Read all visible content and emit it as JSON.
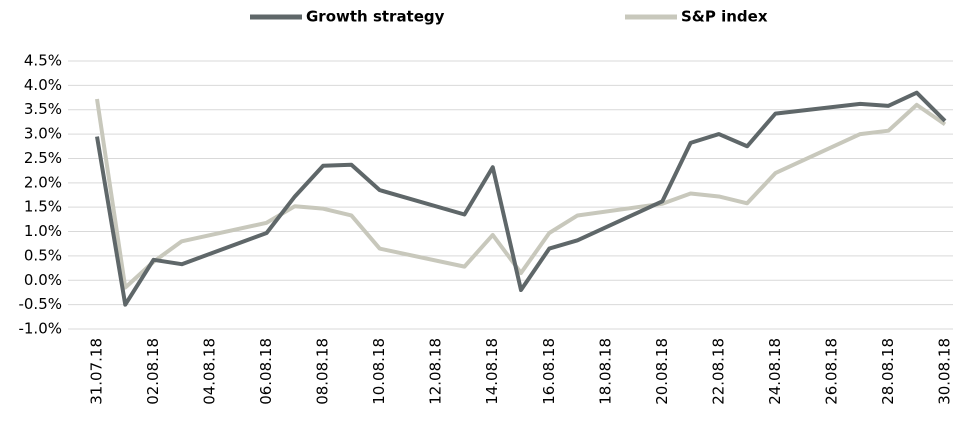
{
  "chart_data": {
    "type": "line",
    "x": [
      "31.07.18",
      "01.08.18",
      "02.08.18",
      "03.08.18",
      "06.08.18",
      "07.08.18",
      "08.08.18",
      "09.08.18",
      "10.08.18",
      "13.08.18",
      "14.08.18",
      "15.08.18",
      "16.08.18",
      "17.08.18",
      "20.08.18",
      "21.08.18",
      "22.08.18",
      "23.08.18",
      "24.08.18",
      "27.08.18",
      "28.08.18",
      "29.08.18",
      "30.08.18"
    ],
    "series": [
      {
        "name": "Growth strategy",
        "color": "#5f6769",
        "values": [
          2.95,
          -0.5,
          0.42,
          0.33,
          0.97,
          1.72,
          2.35,
          2.37,
          1.85,
          1.35,
          2.32,
          -0.2,
          0.65,
          0.82,
          1.62,
          2.82,
          3.0,
          2.75,
          3.42,
          3.62,
          3.58,
          3.85,
          3.27
        ]
      },
      {
        "name": "S&P index",
        "color": "#c8c8bc",
        "values": [
          3.72,
          -0.15,
          0.38,
          0.8,
          1.18,
          1.52,
          1.47,
          1.33,
          0.65,
          0.28,
          0.93,
          0.15,
          0.97,
          1.33,
          1.57,
          1.78,
          1.72,
          1.58,
          2.2,
          3.0,
          3.07,
          3.6,
          3.2
        ]
      }
    ],
    "xlim": [
      "31.07.18",
      "30.08.18"
    ],
    "xticks": [
      "31.07.18",
      "02.08.18",
      "04.08.18",
      "06.08.18",
      "08.08.18",
      "10.08.18",
      "12.08.18",
      "14.08.18",
      "16.08.18",
      "18.08.18",
      "20.08.18",
      "22.08.18",
      "24.08.18",
      "26.08.18",
      "28.08.18",
      "30.08.18"
    ],
    "ylim": [
      -1,
      4.5
    ],
    "yticks": [
      {
        "value": -1,
        "label": "-1.0%"
      },
      {
        "value": -0.5,
        "label": "-0.5%"
      },
      {
        "value": 0,
        "label": "0.0%"
      },
      {
        "value": 0.5,
        "label": "0.5%"
      },
      {
        "value": 1,
        "label": "1.0%"
      },
      {
        "value": 1.5,
        "label": "1.5%"
      },
      {
        "value": 2,
        "label": "2.0%"
      },
      {
        "value": 2.5,
        "label": "2.5%"
      },
      {
        "value": 3,
        "label": "3.0%"
      },
      {
        "value": 3.5,
        "label": "3.5%"
      },
      {
        "value": 4,
        "label": "4.0%"
      },
      {
        "value": 4.5,
        "label": "4.5%"
      }
    ],
    "grid": true,
    "legend": "top"
  }
}
